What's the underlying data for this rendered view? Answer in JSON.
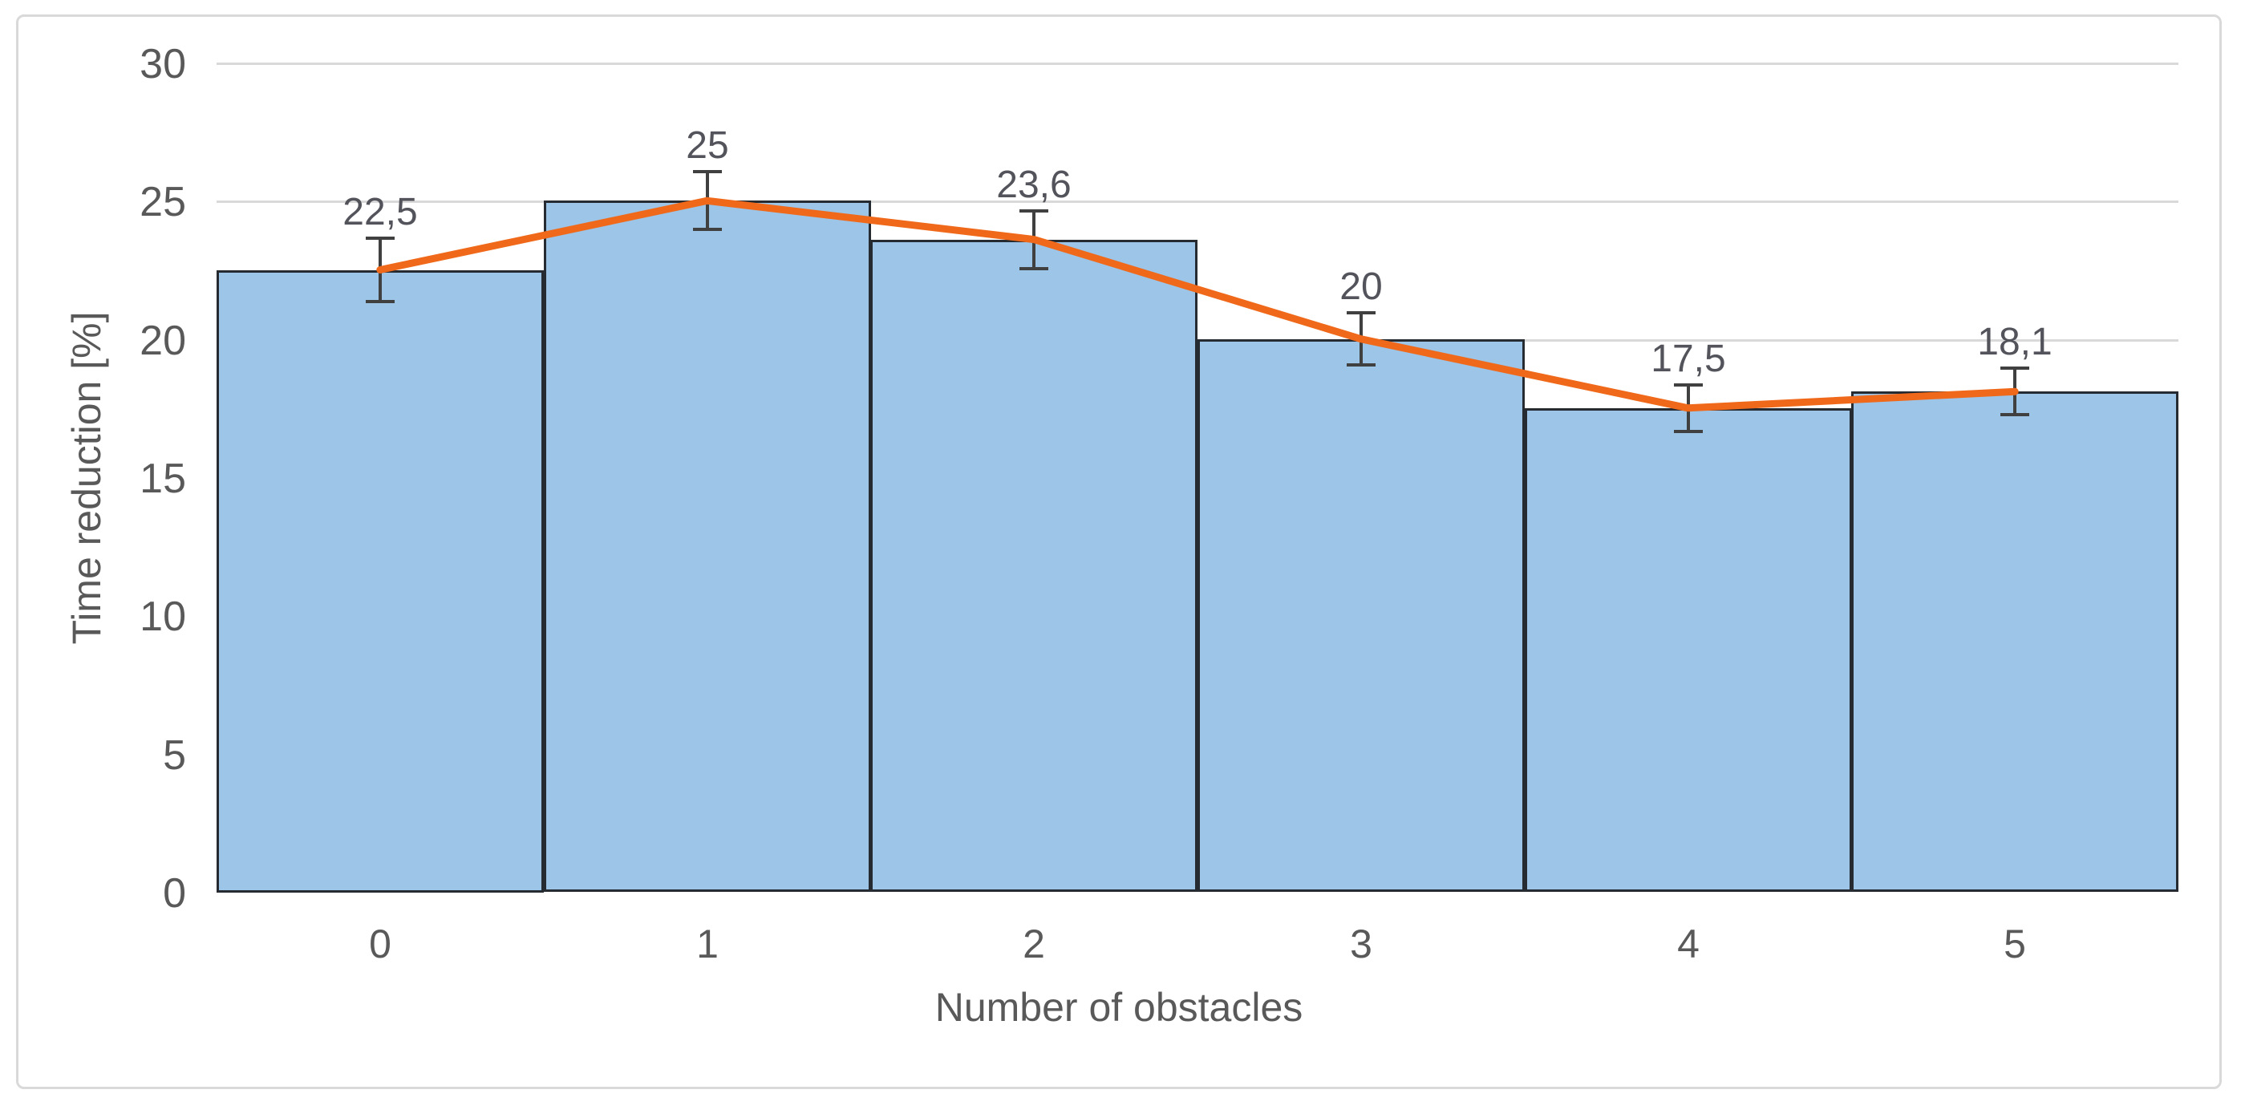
{
  "chart_data": {
    "type": "bar",
    "title": "",
    "categories": [
      "0",
      "1",
      "2",
      "3",
      "4",
      "5"
    ],
    "series": [
      {
        "name": "time-reduction-bars",
        "type": "bar",
        "values": [
          22.5,
          25,
          23.6,
          20,
          17.5,
          18.1
        ]
      },
      {
        "name": "trend-line-overlay",
        "type": "line",
        "values": [
          22.5,
          25,
          23.6,
          20,
          17.5,
          18.1
        ]
      }
    ],
    "data_labels": [
      "22,5",
      "25",
      "23,6",
      "20",
      "17,5",
      "18,1"
    ],
    "error_bars_est": [
      1.2,
      1.1,
      1.1,
      1.0,
      0.9,
      0.9
    ],
    "xlabel": "Number of obstacles",
    "ylabel": "Time reduction [%]",
    "ylim": [
      0,
      30
    ],
    "yticks": [
      0,
      5,
      10,
      15,
      20,
      25,
      30
    ],
    "grid": "horizontal",
    "legend": "none",
    "bar_gap": 0,
    "colors": {
      "bar_fill": "#9cc5e8",
      "bar_border": "#262a31",
      "trend_line": "#f0691a",
      "gridline": "#d9d9d9",
      "axis_text": "#595959",
      "data_label_text": "#53535b",
      "error_bar": "#404040",
      "frame_border": "#d9d9d9",
      "background": "#ffffff"
    }
  }
}
